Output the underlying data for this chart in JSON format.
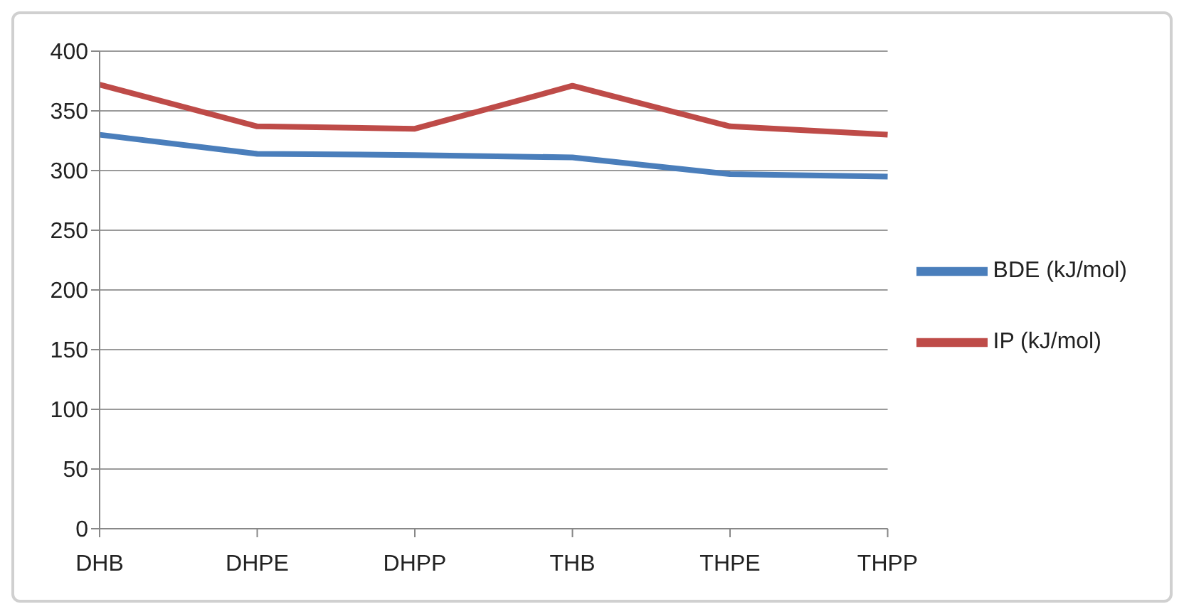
{
  "chart_data": {
    "type": "line",
    "categories": [
      "DHB",
      "DHPE",
      "DHPP",
      "THB",
      "THPE",
      "THPP"
    ],
    "series": [
      {
        "name": "BDE (kJ/mol)",
        "color": "#4a7ebb",
        "values": [
          330,
          314,
          313,
          311,
          297,
          295
        ]
      },
      {
        "name": "IP (kJ/mol)",
        "color": "#be4b48",
        "values": [
          372,
          337,
          335,
          371,
          337,
          330
        ]
      }
    ],
    "ylim": [
      0,
      400
    ],
    "yticks": [
      0,
      50,
      100,
      150,
      200,
      250,
      300,
      350,
      400
    ],
    "grid": "y",
    "legend": "right",
    "marker": "none",
    "line_style": "solid"
  }
}
